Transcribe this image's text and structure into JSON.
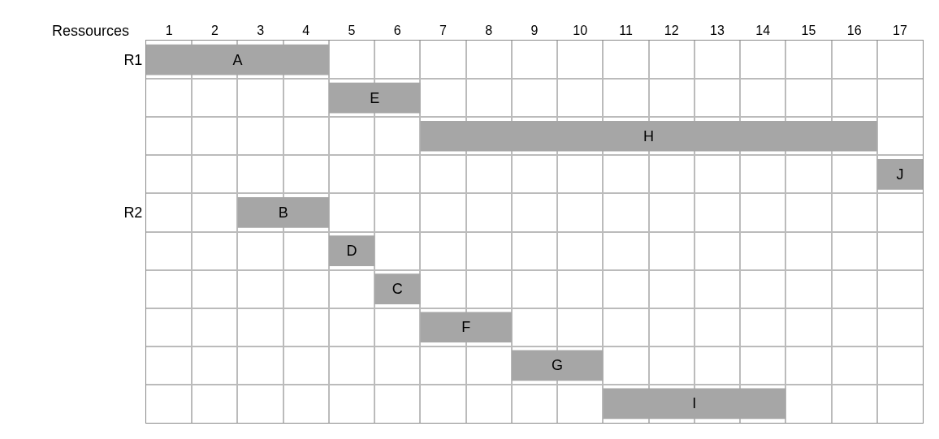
{
  "chart_data": {
    "type": "bar",
    "orientation": "horizontal",
    "ylabel": "Ressources",
    "categories": [
      "R1",
      null,
      null,
      null,
      "R2",
      null,
      null,
      null,
      null,
      null
    ],
    "base": [
      0,
      4,
      6,
      16,
      2,
      4,
      5,
      6,
      8,
      10
    ],
    "values": [
      4,
      2,
      10,
      1,
      2,
      1,
      1,
      2,
      2,
      4
    ],
    "value_labels": [
      "A",
      "E",
      "H",
      "J",
      "B",
      "D",
      "C",
      "F",
      "G",
      "I"
    ],
    "color": "#a6a6a6",
    "xlim": [
      0,
      17
    ],
    "xticks": [
      {
        "value": 0.5,
        "label": "1"
      },
      {
        "value": 1.5,
        "label": "2"
      },
      {
        "value": 2.5,
        "label": "3"
      },
      {
        "value": 3.5,
        "label": "4"
      },
      {
        "value": 4.5,
        "label": "5"
      },
      {
        "value": 5.5,
        "label": "6"
      },
      {
        "value": 6.5,
        "label": "7"
      },
      {
        "value": 7.5,
        "label": "8"
      },
      {
        "value": 8.5,
        "label": "9"
      },
      {
        "value": 9.5,
        "label": "10"
      },
      {
        "value": 10.5,
        "label": "11"
      },
      {
        "value": 11.5,
        "label": "12"
      },
      {
        "value": 12.5,
        "label": "13"
      },
      {
        "value": 13.5,
        "label": "14"
      },
      {
        "value": 14.5,
        "label": "15"
      },
      {
        "value": 15.5,
        "label": "16"
      },
      {
        "value": 16.5,
        "label": "17"
      }
    ],
    "grid": true,
    "legend": false
  }
}
